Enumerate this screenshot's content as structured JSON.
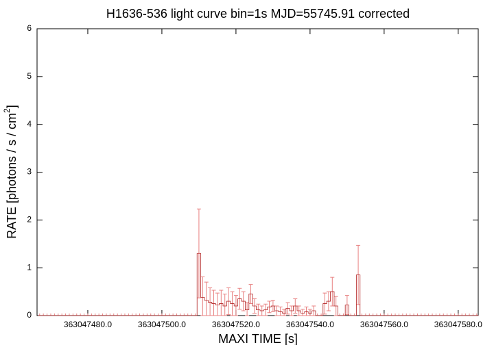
{
  "chart_data": {
    "type": "errorbar-step",
    "title": "H1636-536 light curve bin=1s MJD=55745.91 corrected",
    "xlabel": "MAXI TIME [s]",
    "ylabel": {
      "text": "RATE [photons / s / cm",
      "superscript": "2",
      "suffix": "]"
    },
    "xlim": [
      363047466.3,
      363047585.4
    ],
    "ylim": [
      0,
      6
    ],
    "xticks": [
      {
        "value": 363047480,
        "label": "363047480.0"
      },
      {
        "value": 363047500,
        "label": "363047500.0"
      },
      {
        "value": 363047520,
        "label": "363047520.0"
      },
      {
        "value": 363047540,
        "label": "363047540.0"
      },
      {
        "value": 363047560,
        "label": "363047560.0"
      },
      {
        "value": 363047580,
        "label": "363047580.0"
      }
    ],
    "yticks": [
      0,
      1,
      2,
      3,
      4,
      5,
      6
    ],
    "line_color": "#b02020",
    "error_color": "#e88080",
    "x": [
      363047467,
      363047468,
      363047469,
      363047470,
      363047471,
      363047472,
      363047473,
      363047474,
      363047475,
      363047476,
      363047477,
      363047478,
      363047479,
      363047480,
      363047481,
      363047482,
      363047483,
      363047484,
      363047485,
      363047486,
      363047487,
      363047488,
      363047489,
      363047490,
      363047491,
      363047492,
      363047493,
      363047494,
      363047495,
      363047496,
      363047497,
      363047498,
      363047499,
      363047500,
      363047501,
      363047502,
      363047503,
      363047504,
      363047505,
      363047506,
      363047507,
      363047508,
      363047509,
      363047510,
      363047511,
      363047512,
      363047513,
      363047514,
      363047515,
      363047516,
      363047517,
      363047518,
      363047519,
      363047520,
      363047521,
      363047522,
      363047523,
      363047524,
      363047525,
      363047526,
      363047527,
      363047528,
      363047529,
      363047530,
      363047531,
      363047532,
      363047533,
      363047534,
      363047535,
      363047536,
      363047537,
      363047538,
      363047539,
      363047540,
      363047541,
      363047542,
      363047543,
      363047544,
      363047545,
      363047546,
      363047547,
      363047548,
      363047549,
      363047550,
      363047551,
      363047552,
      363047553,
      363047554,
      363047555,
      363047556,
      363047557,
      363047558,
      363047559,
      363047560,
      363047561,
      363047562,
      363047563,
      363047564,
      363047565,
      363047566,
      363047567,
      363047568,
      363047569,
      363047570,
      363047571,
      363047572,
      363047573,
      363047574,
      363047575,
      363047576,
      363047577,
      363047578,
      363047579,
      363047580,
      363047581,
      363047582,
      363047583,
      363047584,
      363047585
    ],
    "values": [
      0,
      0,
      0,
      0,
      0,
      0,
      0,
      0,
      0,
      0,
      0,
      0,
      0,
      0,
      0,
      0,
      0,
      0,
      0,
      0,
      0,
      0,
      0,
      0,
      0,
      0,
      0,
      0,
      0,
      0,
      0,
      0,
      0,
      0,
      0,
      0,
      0,
      0,
      0,
      0,
      0,
      0,
      0,
      1.3,
      0.38,
      0.32,
      0.28,
      0.25,
      0.22,
      0.25,
      0.2,
      0.3,
      0.25,
      0.2,
      0.35,
      0.3,
      0.12,
      0.45,
      0.2,
      0.12,
      0.1,
      0.12,
      0.18,
      0.2,
      0.1,
      0.08,
      0.05,
      0.15,
      0.1,
      0.2,
      0.1,
      0.05,
      0.08,
      0.05,
      0.1,
      0,
      0,
      0.25,
      0.3,
      0.5,
      0.2,
      0,
      0,
      0.22,
      0,
      0,
      0.85,
      0,
      0,
      0,
      0,
      0,
      0,
      0,
      0,
      0,
      0,
      0,
      0,
      0,
      0,
      0,
      0,
      0,
      0,
      0,
      0,
      0,
      0,
      0,
      0,
      0,
      0,
      0,
      0,
      0,
      0,
      0,
      0
    ],
    "errors": [
      0,
      0,
      0,
      0,
      0,
      0,
      0,
      0,
      0,
      0,
      0,
      0,
      0,
      0,
      0,
      0,
      0,
      0,
      0,
      0,
      0,
      0,
      0,
      0,
      0,
      0,
      0,
      0,
      0,
      0,
      0,
      0,
      0,
      0,
      0,
      0,
      0,
      0,
      0,
      0,
      0,
      0,
      0,
      0.93,
      0.43,
      0.38,
      0.3,
      0.28,
      0.25,
      0.28,
      0.25,
      0.28,
      0.25,
      0.22,
      0.22,
      0.2,
      0.15,
      0.2,
      0.15,
      0.12,
      0.1,
      0.12,
      0.12,
      0.12,
      0.1,
      0.1,
      0.08,
      0.12,
      0.1,
      0.15,
      0.1,
      0.08,
      0.1,
      0.08,
      0.1,
      0,
      0,
      0.22,
      0.2,
      0.3,
      0.2,
      0,
      0,
      0.2,
      0,
      0,
      0.62,
      0,
      0,
      0,
      0,
      0,
      0,
      0,
      0,
      0,
      0,
      0,
      0,
      0,
      0,
      0,
      0,
      0,
      0,
      0,
      0,
      0,
      0,
      0,
      0,
      0,
      0,
      0,
      0,
      0,
      0,
      0,
      0
    ]
  }
}
